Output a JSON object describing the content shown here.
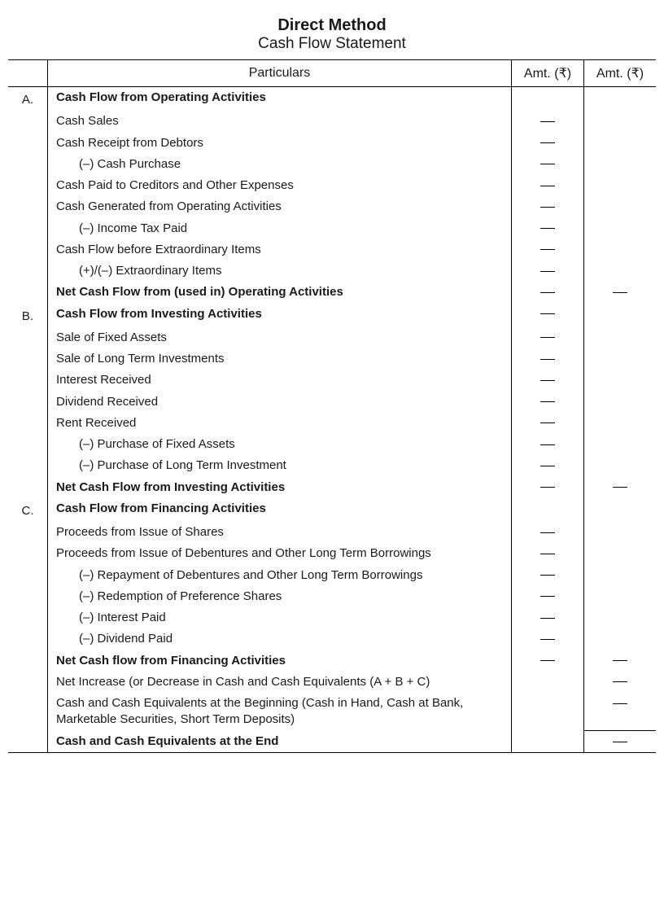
{
  "title": {
    "main": "Direct Method",
    "sub": "Cash Flow Statement"
  },
  "headers": {
    "label": "",
    "particulars": "Particulars",
    "amt1": "Amt. (₹)",
    "amt2": "Amt. (₹)"
  },
  "rows": [
    {
      "label": "A.",
      "text": "Cash Flow from Operating Activities",
      "bold": true,
      "amt1": "",
      "amt2": ""
    },
    {
      "label": "",
      "text": "Cash Sales",
      "amt1": "-",
      "amt2": ""
    },
    {
      "label": "",
      "text": "Cash Receipt from Debtors",
      "amt1": "-",
      "amt2": ""
    },
    {
      "label": "",
      "text": "(–)  Cash Purchase",
      "indent": 1,
      "amt1": "-",
      "amt2": ""
    },
    {
      "label": "",
      "text": "Cash Paid to Creditors and Other Expenses",
      "amt1": "-",
      "amt2": ""
    },
    {
      "label": "",
      "text": "Cash Generated from Operating Activities",
      "amt1": "-",
      "amt2": ""
    },
    {
      "label": "",
      "text": "(–)  Income Tax Paid",
      "indent": 1,
      "amt1": "-",
      "amt2": ""
    },
    {
      "label": "",
      "text": "Cash Flow before Extraordinary Items",
      "amt1": "-",
      "amt2": ""
    },
    {
      "label": "",
      "text": "(+)/(–)  Extraordinary Items",
      "indent": 1,
      "amt1": "-",
      "amt2": ""
    },
    {
      "label": "",
      "text": "Net Cash Flow from (used in) Operating Activities",
      "bold": true,
      "amt1": "-",
      "amt2": "-"
    },
    {
      "label": "B.",
      "text": "Cash Flow from Investing Activities",
      "bold": true,
      "amt1": "-",
      "amt2": ""
    },
    {
      "label": "",
      "text": "Sale of Fixed Assets",
      "amt1": "-",
      "amt2": ""
    },
    {
      "label": "",
      "text": "Sale of Long Term Investments",
      "amt1": "-",
      "amt2": ""
    },
    {
      "label": "",
      "text": "Interest Received",
      "amt1": "-",
      "amt2": ""
    },
    {
      "label": "",
      "text": "Dividend Received",
      "amt1": "-",
      "amt2": ""
    },
    {
      "label": "",
      "text": "Rent Received",
      "amt1": "-",
      "amt2": ""
    },
    {
      "label": "",
      "text": "(–)  Purchase of Fixed Assets",
      "indent": 1,
      "amt1": "-",
      "amt2": ""
    },
    {
      "label": "",
      "text": "(–)  Purchase of Long Term Investment",
      "indent": 1,
      "amt1": "-",
      "amt2": ""
    },
    {
      "label": "",
      "text": "Net Cash Flow from Investing Activities",
      "bold": true,
      "amt1": "-",
      "amt2": "-"
    },
    {
      "label": "C.",
      "text": "Cash Flow from Financing Activities",
      "bold": true,
      "amt1": "",
      "amt2": ""
    },
    {
      "label": "",
      "text": "Proceeds from Issue of Shares",
      "amt1": "-",
      "amt2": ""
    },
    {
      "label": "",
      "text": "Proceeds from Issue of Debentures and Other Long Term Borrowings",
      "amt1": "-",
      "amt2": ""
    },
    {
      "label": "",
      "text": "(–)  Repayment of Debentures and Other Long Term Borrowings",
      "indent": 1,
      "amt1": "-",
      "amt2": ""
    },
    {
      "label": "",
      "text": "(–)  Redemption of Preference Shares",
      "indent": 1,
      "amt1": "-",
      "amt2": ""
    },
    {
      "label": "",
      "text": "(–)  Interest Paid",
      "indent": 1,
      "amt1": "-",
      "amt2": ""
    },
    {
      "label": "",
      "text": "(–)  Dividend Paid",
      "indent": 1,
      "amt1": "-",
      "amt2": ""
    },
    {
      "label": "",
      "text": "Net Cash flow from Financing Activities",
      "bold": true,
      "amt1": "-",
      "amt2": "-"
    },
    {
      "label": "",
      "text": "Net Increase (or Decrease in Cash and Cash Equivalents (A + B + C)",
      "amt1": "",
      "amt2": "-"
    },
    {
      "label": "",
      "text": "Cash and Cash Equivalents at the Beginning (Cash in Hand, Cash at Bank, Marketable Securities, Short Term Deposits)",
      "amt1": "",
      "amt2": "-"
    },
    {
      "label": "",
      "text": "Cash and Cash Equivalents at the End",
      "bold": true,
      "amt1": "",
      "amt2": "-",
      "endline": true
    }
  ]
}
